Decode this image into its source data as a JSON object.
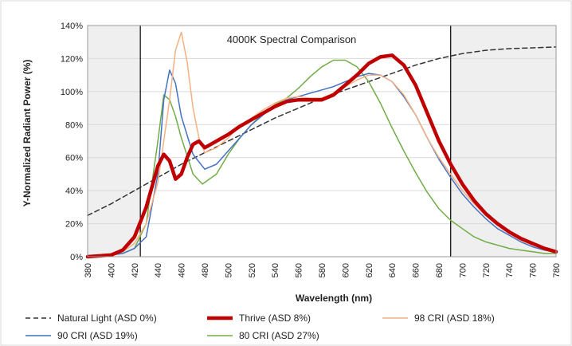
{
  "chart_data": {
    "type": "line",
    "title": "4000K Spectral Comparison",
    "xlabel": "Wavelength (nm)",
    "ylabel": "Y-Normalized Radiant Power (%)",
    "xlim": [
      380,
      780
    ],
    "ylim": [
      0,
      140
    ],
    "x_ticks": [
      "380",
      "400",
      "420",
      "440",
      "460",
      "480",
      "500",
      "520",
      "540",
      "560",
      "580",
      "600",
      "620",
      "640",
      "660",
      "680",
      "700",
      "720",
      "740",
      "760",
      "780"
    ],
    "y_ticks": [
      "0%",
      "20%",
      "40%",
      "60%",
      "80%",
      "100%",
      "120%",
      "140%"
    ],
    "y_tick_values": [
      0,
      20,
      40,
      60,
      80,
      100,
      120,
      140
    ],
    "shaded_ranges": [
      [
        380,
        425
      ],
      [
        690,
        780
      ]
    ],
    "reference_lines_x": [
      425,
      690
    ],
    "grid": "horizontal",
    "legend_position": "bottom",
    "series": [
      {
        "name": "Natural Light (ASD 0%)",
        "color": "#333333",
        "style": "dashed",
        "points": [
          [
            380,
            25
          ],
          [
            400,
            32
          ],
          [
            420,
            40
          ],
          [
            440,
            48
          ],
          [
            460,
            56
          ],
          [
            480,
            63
          ],
          [
            500,
            70
          ],
          [
            520,
            77
          ],
          [
            540,
            84
          ],
          [
            560,
            90
          ],
          [
            580,
            96
          ],
          [
            600,
            101
          ],
          [
            620,
            106
          ],
          [
            640,
            111
          ],
          [
            660,
            116
          ],
          [
            680,
            120
          ],
          [
            700,
            123
          ],
          [
            720,
            125
          ],
          [
            740,
            126
          ],
          [
            760,
            126.5
          ],
          [
            780,
            127
          ]
        ]
      },
      {
        "name": "Thrive (ASD 8%)",
        "color": "#c00000",
        "style": "thick",
        "points": [
          [
            380,
            0
          ],
          [
            400,
            1
          ],
          [
            410,
            4
          ],
          [
            420,
            12
          ],
          [
            430,
            30
          ],
          [
            440,
            55
          ],
          [
            445,
            62
          ],
          [
            450,
            58
          ],
          [
            455,
            47
          ],
          [
            460,
            50
          ],
          [
            465,
            60
          ],
          [
            470,
            68
          ],
          [
            475,
            70
          ],
          [
            480,
            66
          ],
          [
            490,
            70
          ],
          [
            500,
            74
          ],
          [
            510,
            79
          ],
          [
            520,
            83
          ],
          [
            530,
            87
          ],
          [
            540,
            91
          ],
          [
            550,
            94
          ],
          [
            560,
            95
          ],
          [
            570,
            95
          ],
          [
            580,
            95
          ],
          [
            590,
            98
          ],
          [
            600,
            104
          ],
          [
            610,
            110
          ],
          [
            620,
            117
          ],
          [
            630,
            121
          ],
          [
            640,
            122
          ],
          [
            650,
            116
          ],
          [
            660,
            104
          ],
          [
            670,
            87
          ],
          [
            680,
            70
          ],
          [
            690,
            56
          ],
          [
            700,
            44
          ],
          [
            710,
            34
          ],
          [
            720,
            26
          ],
          [
            730,
            20
          ],
          [
            740,
            15
          ],
          [
            750,
            11
          ],
          [
            760,
            8
          ],
          [
            770,
            5
          ],
          [
            780,
            3
          ]
        ]
      },
      {
        "name": "98 CRI (ASD 18%)",
        "color": "#f4b183",
        "style": "solid",
        "points": [
          [
            380,
            0
          ],
          [
            400,
            1
          ],
          [
            410,
            3
          ],
          [
            420,
            8
          ],
          [
            430,
            20
          ],
          [
            440,
            45
          ],
          [
            450,
            95
          ],
          [
            455,
            125
          ],
          [
            460,
            136
          ],
          [
            465,
            118
          ],
          [
            470,
            90
          ],
          [
            475,
            72
          ],
          [
            480,
            63
          ],
          [
            490,
            66
          ],
          [
            500,
            72
          ],
          [
            510,
            79
          ],
          [
            520,
            84
          ],
          [
            530,
            89
          ],
          [
            540,
            93
          ],
          [
            550,
            96
          ],
          [
            560,
            97
          ],
          [
            570,
            96
          ],
          [
            580,
            96
          ],
          [
            590,
            99
          ],
          [
            600,
            103
          ],
          [
            610,
            107
          ],
          [
            620,
            110
          ],
          [
            630,
            110
          ],
          [
            640,
            106
          ],
          [
            650,
            98
          ],
          [
            660,
            86
          ],
          [
            670,
            72
          ],
          [
            680,
            60
          ],
          [
            690,
            50
          ],
          [
            700,
            40
          ],
          [
            710,
            32
          ],
          [
            720,
            25
          ],
          [
            730,
            19
          ],
          [
            740,
            14
          ],
          [
            750,
            10
          ],
          [
            760,
            7
          ],
          [
            770,
            5
          ],
          [
            780,
            3
          ]
        ]
      },
      {
        "name": "90 CRI (ASD 19%)",
        "color": "#4472c4",
        "style": "solid",
        "points": [
          [
            380,
            0
          ],
          [
            400,
            1
          ],
          [
            410,
            2
          ],
          [
            420,
            5
          ],
          [
            430,
            12
          ],
          [
            440,
            50
          ],
          [
            445,
            95
          ],
          [
            450,
            113
          ],
          [
            455,
            105
          ],
          [
            460,
            85
          ],
          [
            470,
            62
          ],
          [
            480,
            53
          ],
          [
            490,
            56
          ],
          [
            500,
            64
          ],
          [
            510,
            72
          ],
          [
            520,
            80
          ],
          [
            530,
            86
          ],
          [
            540,
            91
          ],
          [
            550,
            95
          ],
          [
            560,
            97
          ],
          [
            570,
            99
          ],
          [
            580,
            101
          ],
          [
            590,
            103
          ],
          [
            600,
            106
          ],
          [
            610,
            109
          ],
          [
            620,
            111
          ],
          [
            630,
            110
          ],
          [
            640,
            106
          ],
          [
            650,
            97
          ],
          [
            660,
            86
          ],
          [
            670,
            72
          ],
          [
            680,
            59
          ],
          [
            690,
            48
          ],
          [
            700,
            38
          ],
          [
            710,
            30
          ],
          [
            720,
            23
          ],
          [
            730,
            17
          ],
          [
            740,
            13
          ],
          [
            750,
            9
          ],
          [
            760,
            6
          ],
          [
            770,
            4
          ],
          [
            780,
            3
          ]
        ]
      },
      {
        "name": "80 CRI (ASD 27%)",
        "color": "#70ad47",
        "style": "solid",
        "points": [
          [
            380,
            0
          ],
          [
            400,
            1
          ],
          [
            410,
            2
          ],
          [
            420,
            5
          ],
          [
            430,
            20
          ],
          [
            440,
            70
          ],
          [
            445,
            98
          ],
          [
            450,
            95
          ],
          [
            455,
            85
          ],
          [
            460,
            72
          ],
          [
            470,
            50
          ],
          [
            478,
            44
          ],
          [
            490,
            50
          ],
          [
            500,
            62
          ],
          [
            510,
            72
          ],
          [
            520,
            80
          ],
          [
            530,
            87
          ],
          [
            540,
            92
          ],
          [
            550,
            96
          ],
          [
            560,
            102
          ],
          [
            570,
            109
          ],
          [
            580,
            115
          ],
          [
            590,
            119
          ],
          [
            600,
            119
          ],
          [
            610,
            115
          ],
          [
            620,
            106
          ],
          [
            630,
            93
          ],
          [
            640,
            78
          ],
          [
            650,
            64
          ],
          [
            660,
            51
          ],
          [
            670,
            39
          ],
          [
            680,
            29
          ],
          [
            690,
            22
          ],
          [
            700,
            17
          ],
          [
            710,
            12
          ],
          [
            720,
            9
          ],
          [
            730,
            7
          ],
          [
            740,
            5
          ],
          [
            750,
            4
          ],
          [
            760,
            3
          ],
          [
            770,
            2
          ],
          [
            780,
            2
          ]
        ]
      }
    ]
  }
}
